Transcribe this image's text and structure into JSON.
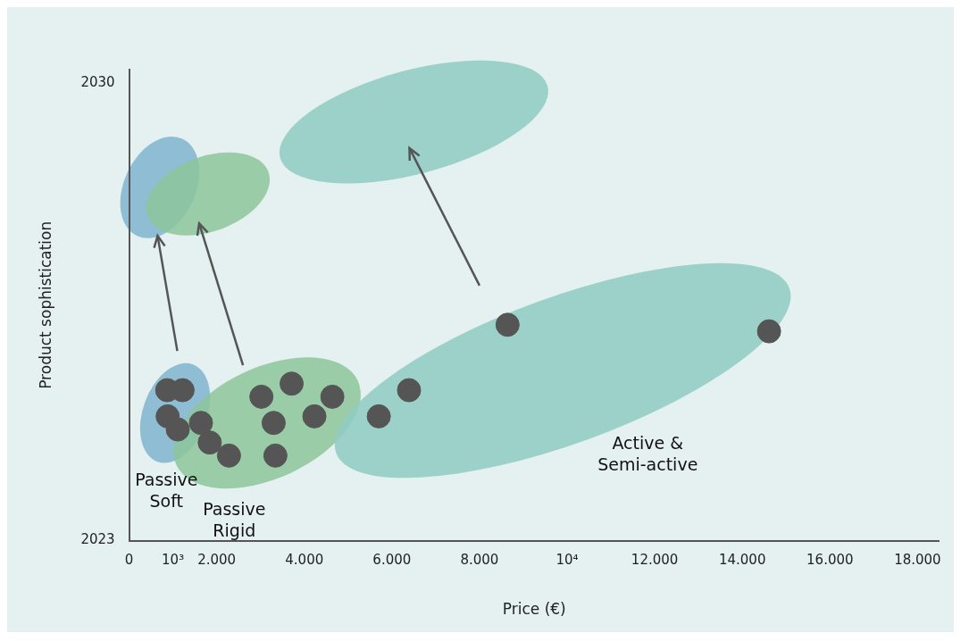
{
  "chart_data": {
    "type": "scatter",
    "xlabel": "Price (€)",
    "ylabel": "Product sophistication",
    "xlim": [
      0,
      18500
    ],
    "ylim": [
      2023,
      2030.2
    ],
    "xticks": [
      0,
      {
        "value": 1000,
        "label": "10³"
      },
      {
        "value": 2000,
        "label": "2.000"
      },
      {
        "value": 4000,
        "label": "4.000"
      },
      {
        "value": 6000,
        "label": "6.000"
      },
      {
        "value": 8000,
        "label": "8.000"
      },
      {
        "value": 10000,
        "label": "10⁴"
      },
      {
        "value": 12000,
        "label": "12.000"
      },
      {
        "value": 14000,
        "label": "14.000"
      },
      {
        "value": 16000,
        "label": "16.000"
      },
      {
        "value": 18000,
        "label": "18.000"
      }
    ],
    "yticks": [
      2023,
      2030
    ],
    "series": [
      {
        "color": "#555555",
        "x": [
          870,
          1220,
          880,
          1110,
          1640,
          1840,
          2280,
          3020,
          3710,
          4640,
          3300,
          4230,
          3340,
          5700,
          6390,
          8640,
          14610
        ],
        "values": [
          2025.3,
          2025.3,
          2024.9,
          2024.7,
          2024.8,
          2024.5,
          2024.3,
          2025.2,
          2025.4,
          2025.2,
          2024.8,
          2024.9,
          2024.3,
          2024.9,
          2025.3,
          2026.3,
          2026.2
        ]
      }
    ],
    "annotations": [
      "Passive\nSoft",
      "Passive\nRigid",
      "Active &\nSemi-active"
    ],
    "marker": "circle",
    "grid": false,
    "legend": false
  }
}
